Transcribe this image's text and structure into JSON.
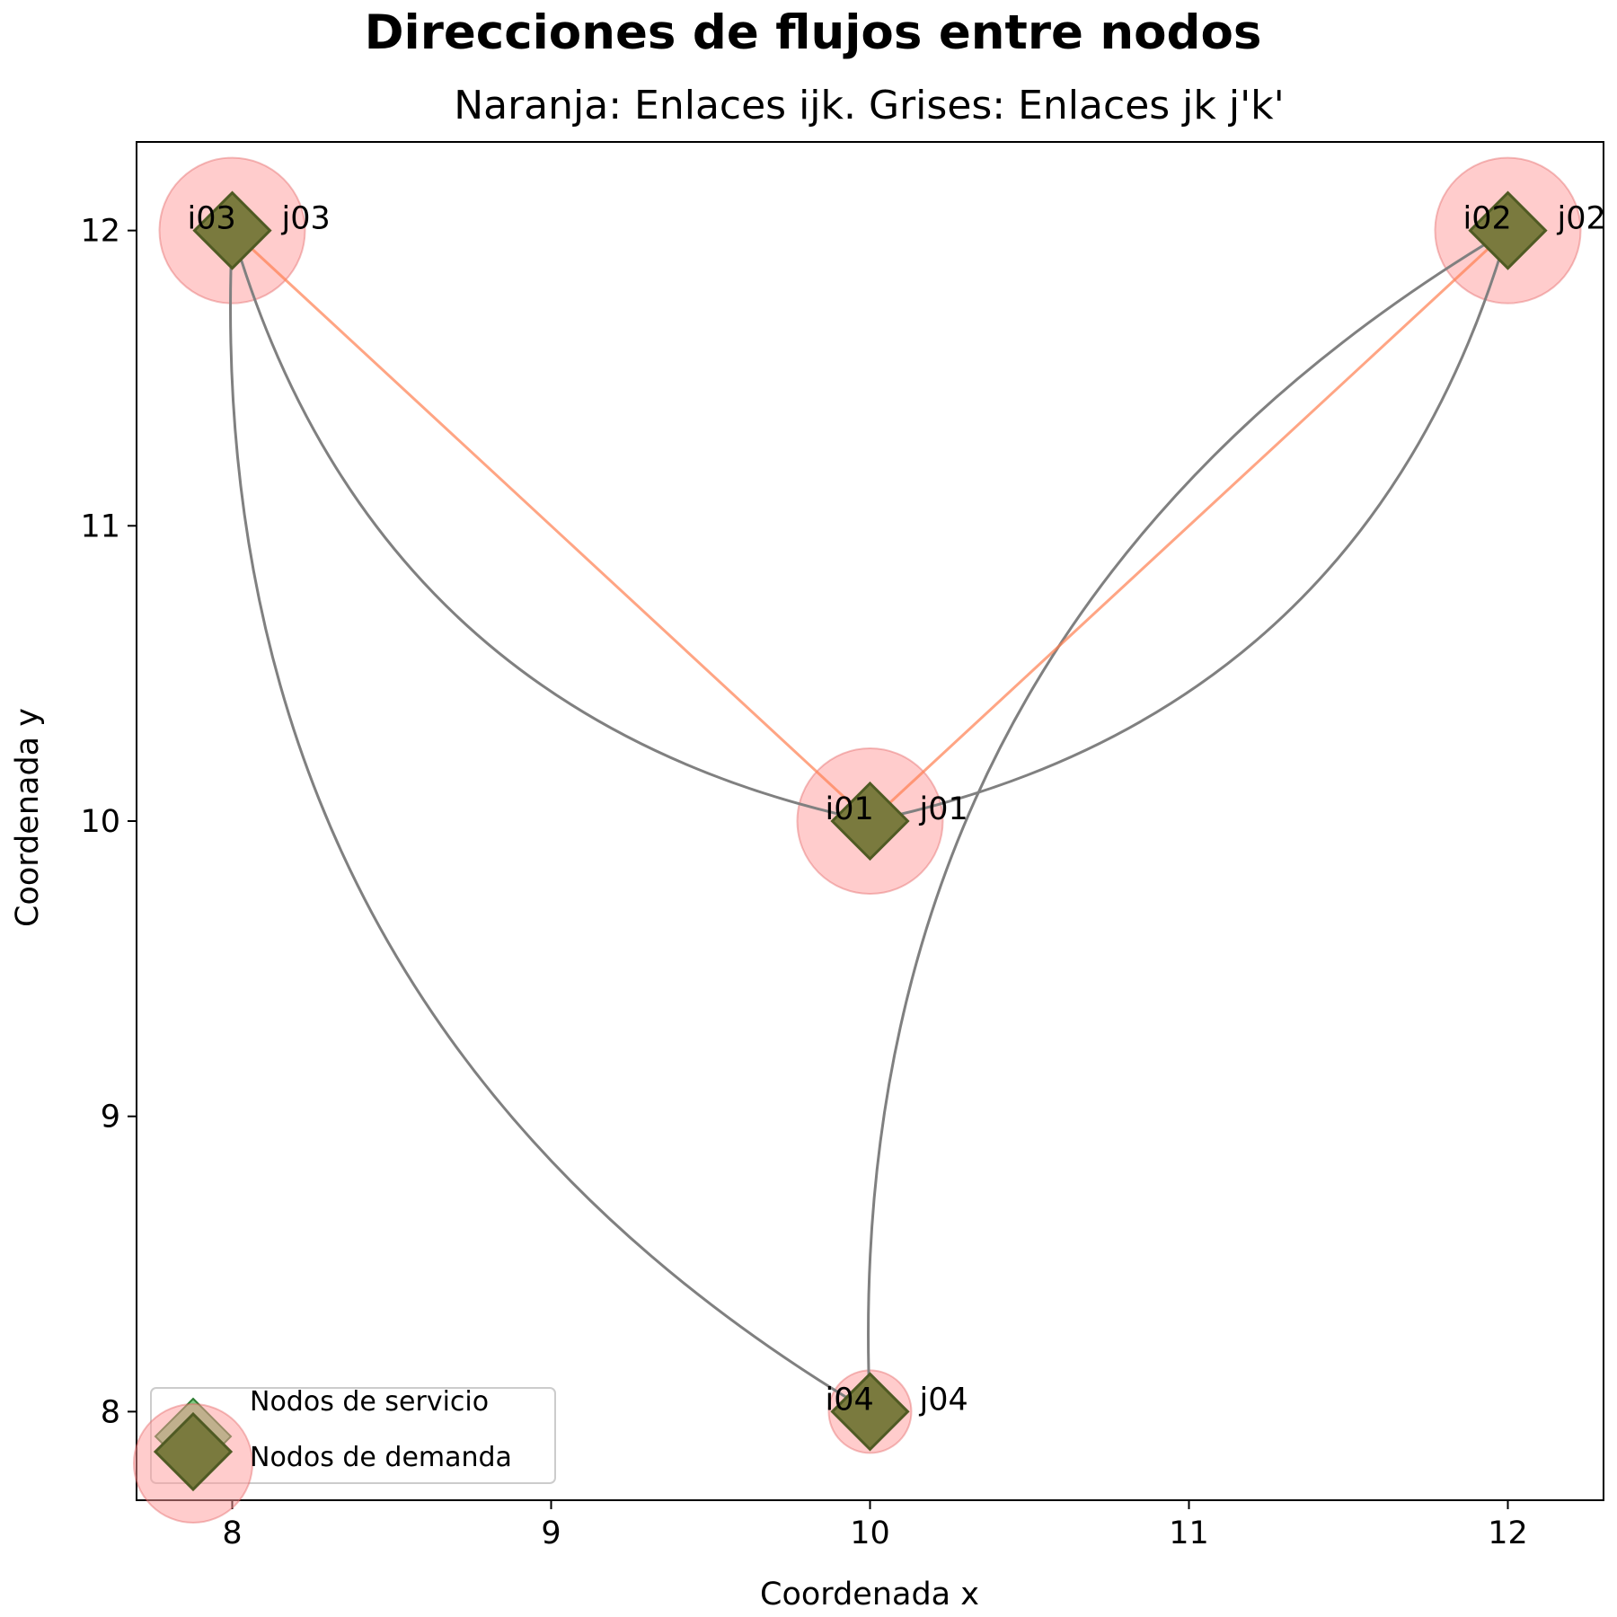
{
  "chart_data": {
    "type": "network",
    "title": "Direcciones de flujos entre nodos",
    "subtitle": "Naranja: Enlaces ijk. Grises: Enlaces jk j'k'",
    "xlabel": "Coordenada x",
    "ylabel": "Coordenada y",
    "xlim": [
      7.7,
      12.3
    ],
    "ylim": [
      7.7,
      12.3
    ],
    "xticks": [
      8,
      9,
      10,
      11,
      12
    ],
    "yticks": [
      8,
      9,
      10,
      11,
      12
    ],
    "grid": false,
    "legend": {
      "position": "lower left",
      "entries": [
        "Nodos de servicio",
        "Nodos de demanda"
      ]
    },
    "colors": {
      "service": "#2ca02c",
      "demand": "#ff9999",
      "ijk_link": "#ff7f50",
      "jk_link": "#808080"
    },
    "demand_nodes": [
      {
        "label": "i01",
        "x": 10,
        "y": 10,
        "size": "large"
      },
      {
        "label": "i02",
        "x": 12,
        "y": 12,
        "size": "large"
      },
      {
        "label": "i03",
        "x": 8,
        "y": 12,
        "size": "large"
      },
      {
        "label": "i04",
        "x": 10,
        "y": 8,
        "size": "small"
      }
    ],
    "service_nodes": [
      {
        "label": "j01",
        "x": 10,
        "y": 10
      },
      {
        "label": "j02",
        "x": 12,
        "y": 12
      },
      {
        "label": "j03",
        "x": 8,
        "y": 12
      },
      {
        "label": "j04",
        "x": 10,
        "y": 8
      }
    ],
    "ijk_links": [
      {
        "from": "j03",
        "to": "j01"
      },
      {
        "from": "j02",
        "to": "j01"
      }
    ],
    "jk_links": [
      {
        "from": "j01",
        "to": "j03",
        "rad": 0.3
      },
      {
        "from": "j01",
        "to": "j02",
        "rad": -0.3
      },
      {
        "from": "j04",
        "to": "j03",
        "rad": 0.3
      },
      {
        "from": "j04",
        "to": "j02",
        "rad": 0.3
      }
    ]
  }
}
